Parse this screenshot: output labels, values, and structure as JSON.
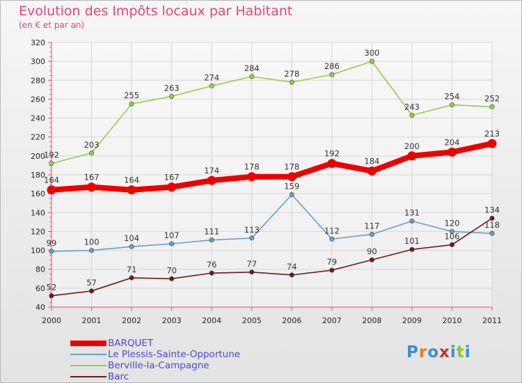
{
  "title": "Evolution des Impôts locaux par Habitant",
  "subtitle": "(en € et par an)",
  "logo": "Proxiti",
  "chart_data": {
    "type": "line",
    "x": [
      "2000",
      "2001",
      "2002",
      "2003",
      "2004",
      "2005",
      "2006",
      "2007",
      "2008",
      "2009",
      "2010",
      "2011"
    ],
    "ylim": [
      40,
      320
    ],
    "yticks": [
      40,
      60,
      80,
      100,
      120,
      140,
      160,
      180,
      200,
      220,
      240,
      260,
      280,
      300,
      320
    ],
    "grid": true,
    "legend_position": "bottom-left",
    "series": [
      {
        "name": "BARQUET",
        "color": "#ee0000",
        "values": [
          164,
          167,
          164,
          167,
          174,
          178,
          178,
          192,
          184,
          200,
          204,
          213
        ]
      },
      {
        "name": "Le Plessis-Sainte-Opportune",
        "color": "#6a9ec8",
        "values": [
          99,
          100,
          104,
          107,
          111,
          113,
          159,
          112,
          117,
          131,
          120,
          118
        ]
      },
      {
        "name": "Berville-la-Campagne",
        "color": "#8ed24a",
        "values": [
          192,
          203,
          255,
          263,
          274,
          284,
          278,
          286,
          300,
          243,
          254,
          252
        ]
      },
      {
        "name": "Barc",
        "color": "#6b1a1a",
        "values": [
          52,
          57,
          71,
          70,
          76,
          77,
          74,
          79,
          90,
          101,
          106,
          134
        ]
      }
    ]
  }
}
